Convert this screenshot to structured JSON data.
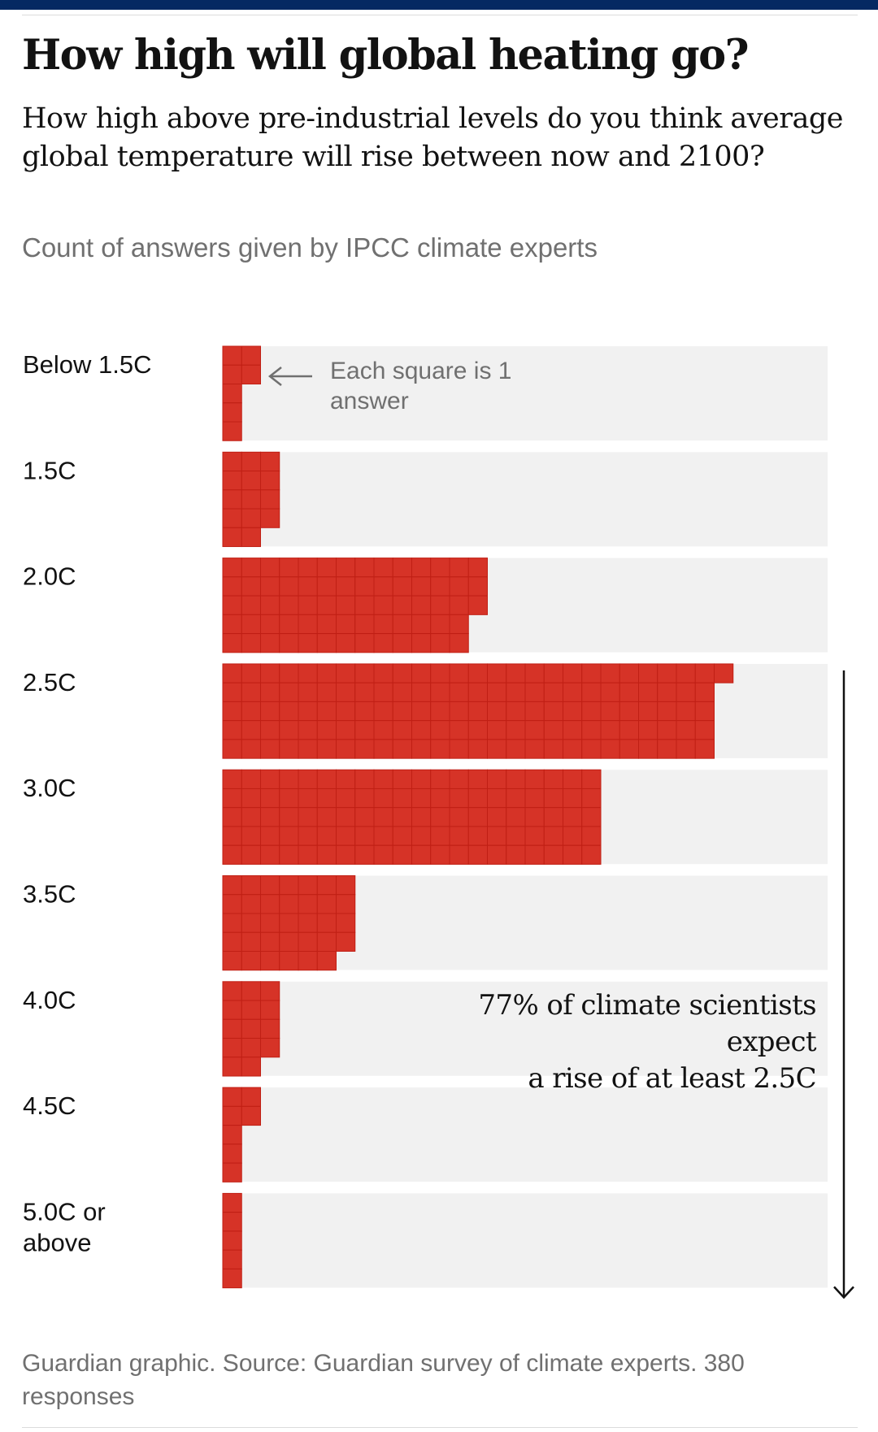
{
  "header": {
    "title": "How high will global heating go?",
    "standfirst": "How high above pre-industrial levels do you think average global temperature will rise between now and 2100?",
    "subtitle": "Count of answers given by IPCC climate experts"
  },
  "footer": {
    "source": "Guardian graphic. Source: Guardian survey of climate experts. 380 responses"
  },
  "colors": {
    "square": "#d63327",
    "square_gap": "#c01f14",
    "track": "#f1f1f1",
    "text": "#121212",
    "muted": "#707070",
    "brand": "#052962"
  },
  "chart_data": {
    "type": "bar",
    "unit": "Each square is 1 answer",
    "categories": [
      "Below 1.5C",
      "1.5C",
      "2.0C",
      "2.5C",
      "3.0C",
      "3.5C",
      "4.0C",
      "4.5C",
      "5.0C or above"
    ],
    "values": [
      7,
      14,
      68,
      131,
      100,
      34,
      14,
      7,
      5
    ],
    "squares_per_column": 5,
    "key_note": "Each square is 1 answer",
    "annotation": "77% of climate scientists expect a rise of at least 2.5C",
    "annotation_lines": [
      "77% of climate scientists",
      "expect",
      "a rise of at least 2.5C"
    ],
    "annotation_range": [
      "2.5C",
      "5.0C or above"
    ]
  }
}
